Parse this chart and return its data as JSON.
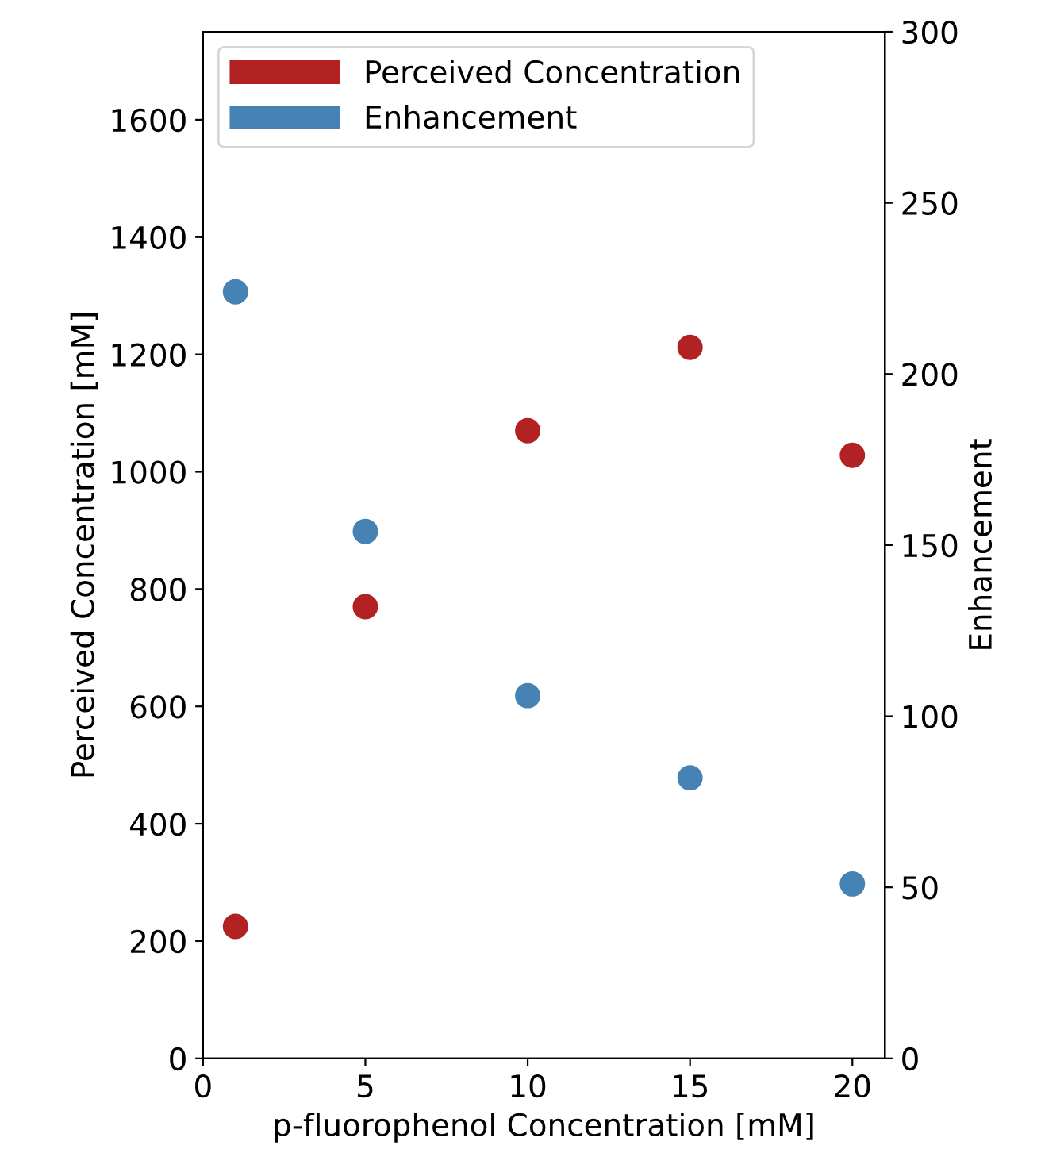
{
  "chart_data": {
    "type": "scatter",
    "xlabel": "p-fluorophenol Concentration [mM]",
    "ylabel": "Perceived Concentration [mM]",
    "y2label": "Enhancement",
    "x": [
      1,
      5,
      10,
      15,
      20
    ],
    "series": [
      {
        "name": "Perceived Concentration",
        "color": "#b22222",
        "values": [
          225,
          770,
          1070,
          1212,
          1028
        ]
      },
      {
        "name": "Enhancement",
        "color": "#4682b4",
        "axis": "y2",
        "values": [
          224,
          154,
          106,
          82,
          51
        ]
      }
    ],
    "xlim": [
      0,
      21
    ],
    "xticks": [
      0,
      5,
      10,
      15,
      20
    ],
    "ylim": [
      0,
      1750
    ],
    "yticks": [
      0,
      200,
      400,
      600,
      800,
      1000,
      1200,
      1400,
      1600
    ],
    "y2lim": [
      0,
      300
    ],
    "y2ticks": [
      0,
      50,
      100,
      150,
      200,
      250,
      300
    ],
    "legend": "top left",
    "marker": "circle",
    "grid": false
  }
}
